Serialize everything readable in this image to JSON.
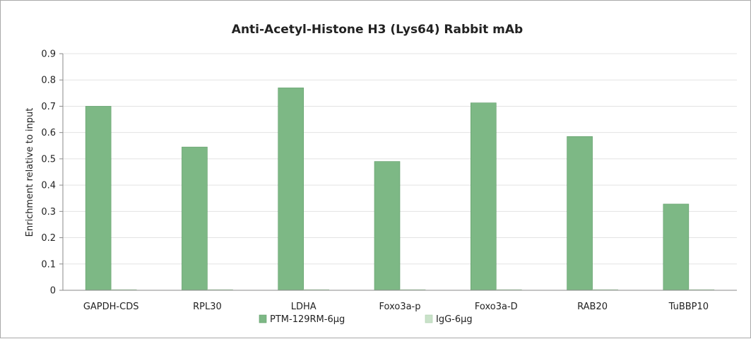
{
  "chart_data": {
    "type": "bar",
    "title": "Anti-Acetyl-Histone H3 (Lys64) Rabbit mAb",
    "xlabel": "",
    "ylabel": "Enrichment relative to input",
    "ylim": [
      0,
      0.9
    ],
    "yticks": [
      "0",
      "0.1",
      "0.2",
      "0.3",
      "0.4",
      "0.5",
      "0.6",
      "0.7",
      "0.8",
      "0.9"
    ],
    "grid": true,
    "legend_position": "bottom",
    "categories": [
      "GAPDH-CDS",
      "RPL30",
      "LDHA",
      "Foxo3a-p",
      "Foxo3a-D",
      "RAB20",
      "TuBBP10"
    ],
    "series": [
      {
        "name": "PTM-129RM-6μg",
        "color": "#7db885",
        "values": [
          0.7,
          0.545,
          0.77,
          0.49,
          0.713,
          0.585,
          0.328
        ]
      },
      {
        "name": "IgG-6μg",
        "color": "#c9e2c9",
        "values": [
          0.002,
          0.002,
          0.002,
          0.002,
          0.002,
          0.002,
          0.002
        ]
      }
    ]
  }
}
